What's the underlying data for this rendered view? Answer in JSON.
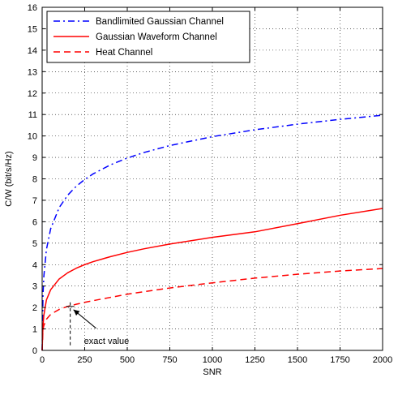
{
  "chart_data": {
    "type": "line",
    "title": "",
    "xlabel": "SNR",
    "ylabel": "C/W (bit/s/Hz)",
    "xlim": [
      0,
      2000
    ],
    "ylim": [
      0,
      16
    ],
    "xticks": [
      0,
      250,
      500,
      750,
      1000,
      1250,
      1500,
      1750,
      2000
    ],
    "yticks": [
      0,
      1,
      2,
      3,
      4,
      5,
      6,
      7,
      8,
      9,
      10,
      11,
      12,
      13,
      14,
      15,
      16
    ],
    "grid": true,
    "legend_position": "top-left",
    "series": [
      {
        "name": "Bandlimited Gaussian Channel",
        "color": "#0000ff",
        "style": "dash-dot",
        "x": [
          0,
          5,
          10,
          25,
          50,
          100,
          150,
          200,
          250,
          300,
          400,
          500,
          600,
          750,
          1000,
          1250,
          1500,
          1750,
          2000
        ],
        "y": [
          0,
          2.585,
          3.459,
          4.7,
          5.672,
          6.658,
          7.238,
          7.651,
          7.972,
          8.234,
          8.648,
          8.969,
          9.232,
          9.553,
          9.967,
          10.288,
          10.551,
          10.774,
          10.966
        ]
      },
      {
        "name": "Gaussian Waveform Channel",
        "color": "#ff0000",
        "style": "solid",
        "x": [
          0,
          5,
          10,
          25,
          50,
          100,
          150,
          200,
          250,
          300,
          400,
          500,
          600,
          750,
          1000,
          1250,
          1500,
          1750,
          2000
        ],
        "y": [
          0,
          1.14,
          1.64,
          2.35,
          2.83,
          3.33,
          3.62,
          3.83,
          4.0,
          4.14,
          4.37,
          4.57,
          4.74,
          4.96,
          5.27,
          5.53,
          5.91,
          6.3,
          6.62
        ]
      },
      {
        "name": "Heat Channel",
        "color": "#ff0000",
        "style": "dashed",
        "x": [
          0,
          5,
          10,
          25,
          50,
          100,
          150,
          200,
          250,
          300,
          400,
          500,
          600,
          750,
          1000,
          1250,
          1500,
          1750,
          2000
        ],
        "y": [
          0,
          0.98,
          1.16,
          1.45,
          1.68,
          1.91,
          2.05,
          2.15,
          2.24,
          2.32,
          2.47,
          2.62,
          2.74,
          2.91,
          3.15,
          3.37,
          3.55,
          3.7,
          3.82
        ]
      }
    ],
    "annotation": {
      "text": "exact value",
      "marker_x": 165,
      "marker_y": 2.05
    }
  }
}
